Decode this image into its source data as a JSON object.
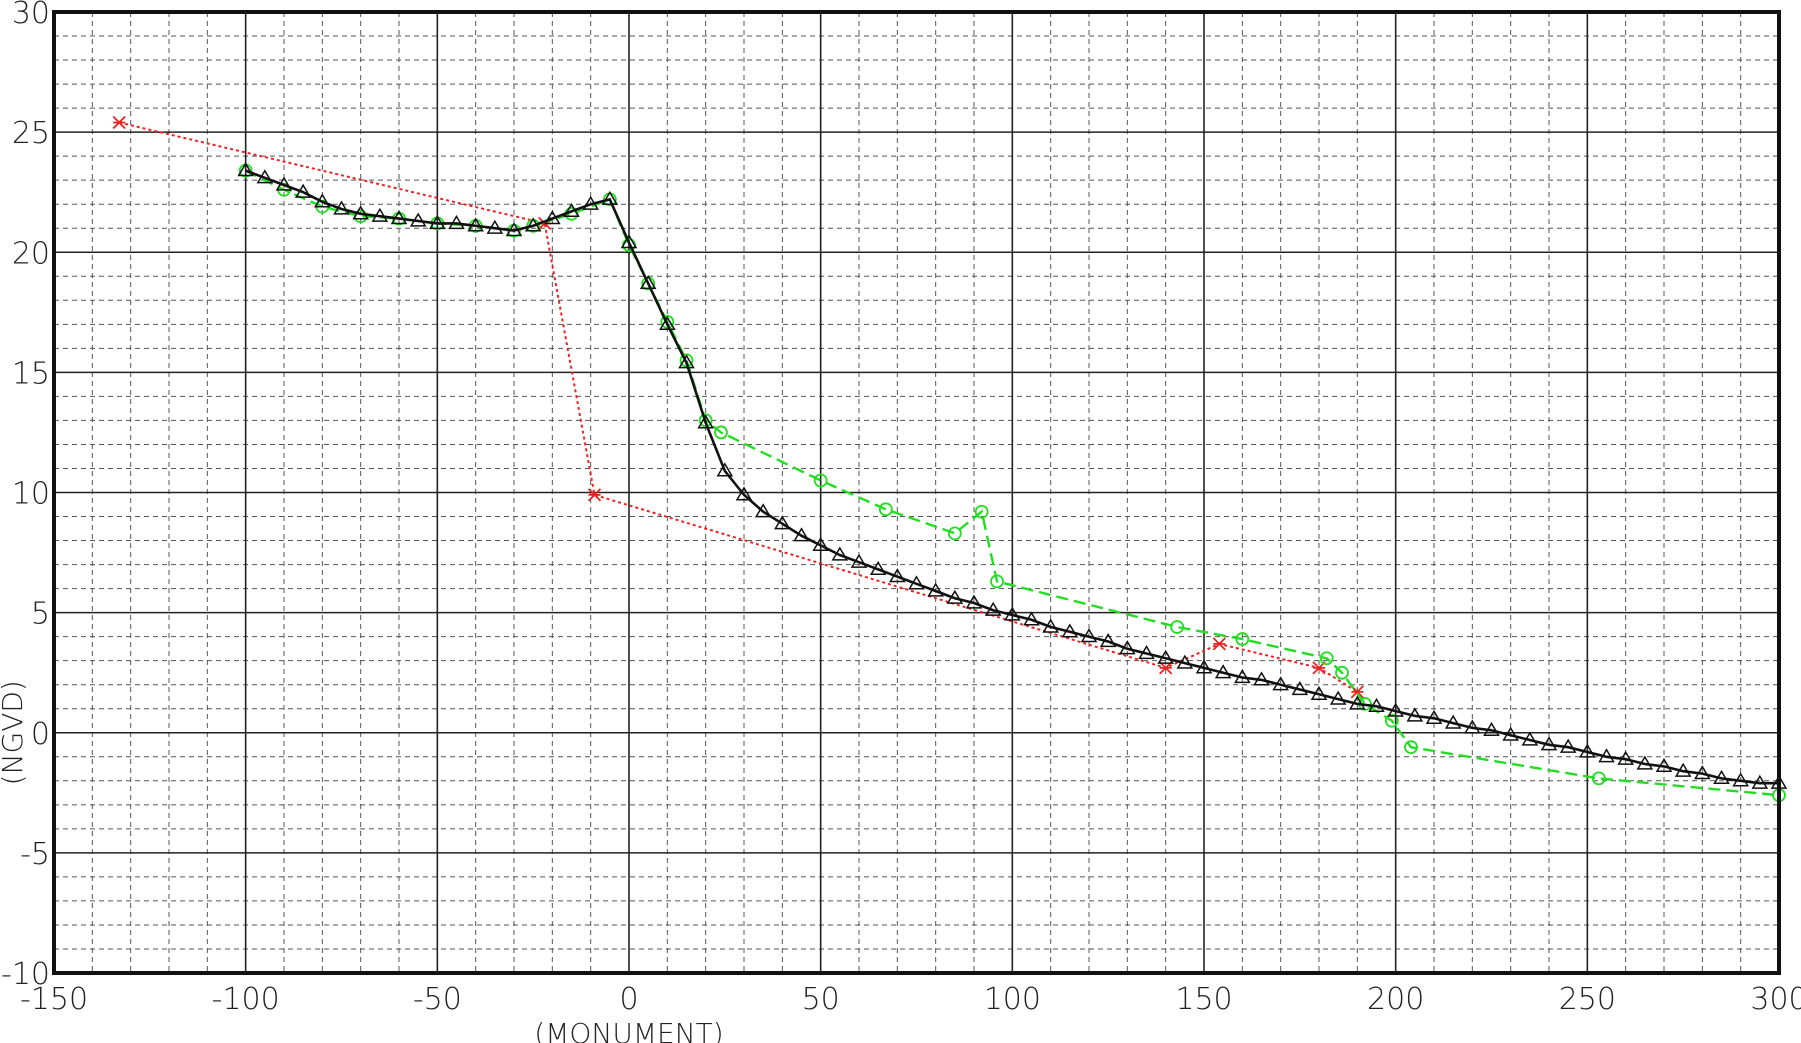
{
  "chart_data": {
    "type": "line",
    "xlabel": "(MONUMENT)",
    "ylabel": "(NGVD)",
    "xlim": [
      -150,
      300
    ],
    "ylim": [
      -10,
      30
    ],
    "x_ticks": [
      -150,
      -100,
      -50,
      0,
      50,
      100,
      150,
      200,
      250,
      300
    ],
    "x_tick_labels": [
      "-150",
      "-100",
      "-50",
      "0",
      "50",
      "100",
      "150",
      "200",
      "250",
      "300"
    ],
    "y_ticks": [
      -10,
      -5,
      0,
      5,
      10,
      15,
      20,
      25,
      30
    ],
    "y_tick_labels": [
      "-10",
      "-5",
      "0",
      "5",
      "10",
      "15",
      "20",
      "25",
      "30"
    ],
    "grid": true,
    "series": [
      {
        "color": "#ee2222",
        "line_style": "dotted",
        "marker": "asterisk",
        "points": [
          [
            -133,
            25.4
          ],
          [
            -22,
            21.2
          ],
          [
            -9,
            9.9
          ],
          [
            140,
            2.7
          ],
          [
            154,
            3.7
          ],
          [
            180,
            2.7
          ],
          [
            190,
            1.7
          ]
        ]
      },
      {
        "color": "#22dd22",
        "line_style": "dashed",
        "marker": "circle",
        "points": [
          [
            -100,
            23.4
          ],
          [
            -90,
            22.6
          ],
          [
            -80,
            21.9
          ],
          [
            -70,
            21.5
          ],
          [
            -60,
            21.4
          ],
          [
            -50,
            21.2
          ],
          [
            -40,
            21.1
          ],
          [
            -30,
            20.9
          ],
          [
            -25,
            21.1
          ],
          [
            -15,
            21.6
          ],
          [
            -5,
            22.2
          ],
          [
            0,
            20.3
          ],
          [
            5,
            18.7
          ],
          [
            10,
            17.1
          ],
          [
            15,
            15.5
          ],
          [
            20,
            13.0
          ],
          [
            24,
            12.5
          ],
          [
            50,
            10.5
          ],
          [
            67,
            9.3
          ],
          [
            85,
            8.3
          ],
          [
            92,
            9.2
          ],
          [
            96,
            6.3
          ],
          [
            143,
            4.4
          ],
          [
            160,
            3.9
          ],
          [
            182,
            3.1
          ],
          [
            186,
            2.5
          ],
          [
            192,
            1.2
          ],
          [
            199,
            0.5
          ],
          [
            204,
            -0.6
          ],
          [
            253,
            -1.9
          ],
          [
            300,
            -2.6
          ]
        ]
      },
      {
        "color": "#111111",
        "line_style": "solid",
        "marker": "triangle",
        "points": [
          [
            -100,
            23.4
          ],
          [
            -95,
            23.1
          ],
          [
            -90,
            22.8
          ],
          [
            -85,
            22.5
          ],
          [
            -80,
            22.1
          ],
          [
            -75,
            21.8
          ],
          [
            -70,
            21.6
          ],
          [
            -65,
            21.5
          ],
          [
            -60,
            21.4
          ],
          [
            -55,
            21.3
          ],
          [
            -50,
            21.2
          ],
          [
            -45,
            21.2
          ],
          [
            -40,
            21.1
          ],
          [
            -35,
            21.0
          ],
          [
            -30,
            20.9
          ],
          [
            -25,
            21.1
          ],
          [
            -20,
            21.4
          ],
          [
            -15,
            21.7
          ],
          [
            -10,
            22.0
          ],
          [
            -5,
            22.2
          ],
          [
            0,
            20.4
          ],
          [
            5,
            18.7
          ],
          [
            10,
            17.0
          ],
          [
            15,
            15.4
          ],
          [
            20,
            12.9
          ],
          [
            25,
            10.9
          ],
          [
            30,
            9.9
          ],
          [
            35,
            9.2
          ],
          [
            40,
            8.7
          ],
          [
            45,
            8.2
          ],
          [
            50,
            7.8
          ],
          [
            55,
            7.4
          ],
          [
            60,
            7.1
          ],
          [
            65,
            6.8
          ],
          [
            70,
            6.5
          ],
          [
            75,
            6.2
          ],
          [
            80,
            5.9
          ],
          [
            85,
            5.6
          ],
          [
            90,
            5.4
          ],
          [
            95,
            5.1
          ],
          [
            100,
            4.9
          ],
          [
            105,
            4.7
          ],
          [
            110,
            4.4
          ],
          [
            115,
            4.2
          ],
          [
            120,
            4.0
          ],
          [
            125,
            3.8
          ],
          [
            130,
            3.5
          ],
          [
            135,
            3.3
          ],
          [
            140,
            3.1
          ],
          [
            145,
            2.9
          ],
          [
            150,
            2.7
          ],
          [
            155,
            2.5
          ],
          [
            160,
            2.3
          ],
          [
            165,
            2.2
          ],
          [
            170,
            2.0
          ],
          [
            175,
            1.8
          ],
          [
            180,
            1.6
          ],
          [
            185,
            1.4
          ],
          [
            190,
            1.2
          ],
          [
            195,
            1.1
          ],
          [
            200,
            0.9
          ],
          [
            205,
            0.7
          ],
          [
            210,
            0.6
          ],
          [
            215,
            0.4
          ],
          [
            220,
            0.2
          ],
          [
            225,
            0.1
          ],
          [
            230,
            -0.1
          ],
          [
            235,
            -0.3
          ],
          [
            240,
            -0.5
          ],
          [
            245,
            -0.6
          ],
          [
            250,
            -0.8
          ],
          [
            255,
            -1.0
          ],
          [
            260,
            -1.1
          ],
          [
            265,
            -1.3
          ],
          [
            270,
            -1.4
          ],
          [
            275,
            -1.6
          ],
          [
            280,
            -1.7
          ],
          [
            285,
            -1.9
          ],
          [
            290,
            -2.0
          ],
          [
            295,
            -2.1
          ],
          [
            300,
            -2.1
          ]
        ]
      }
    ]
  }
}
